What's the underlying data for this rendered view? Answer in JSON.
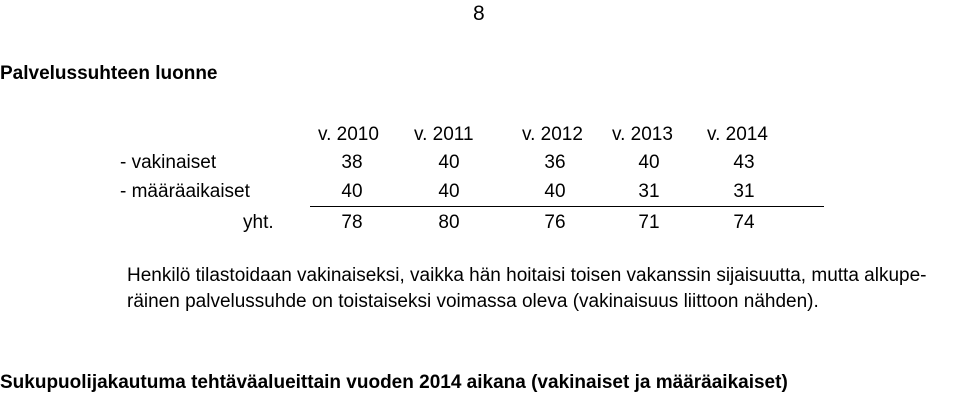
{
  "page_number": "8",
  "heading": "Palvelussuhteen luonne",
  "table": {
    "columns": [
      "v. 2010",
      "v. 2011",
      "v. 2012",
      "v. 2013",
      "v. 2014"
    ],
    "rows": [
      {
        "label": "- vakinaiset",
        "values": [
          "38",
          "40",
          "36",
          "40",
          "43"
        ]
      },
      {
        "label": "- määräaikaiset",
        "values": [
          "40",
          "40",
          "40",
          "31",
          "31"
        ]
      },
      {
        "label": "yht.",
        "values": [
          "78",
          "80",
          "76",
          "71",
          "74"
        ]
      }
    ]
  },
  "note": {
    "line1": "Henkilö tilastoidaan vakinaiseksi, vaikka hän hoitaisi toisen vakanssin sijaisuutta, mutta alkupe-",
    "line2": "räinen palvelussuhde on toistaiseksi voimassa oleva (vakinaisuus liittoon nähden)."
  },
  "next_heading": "Sukupuolijakautuma tehtäväalueittain vuoden 2014 aikana (vakinaiset ja määräaikaiset)"
}
